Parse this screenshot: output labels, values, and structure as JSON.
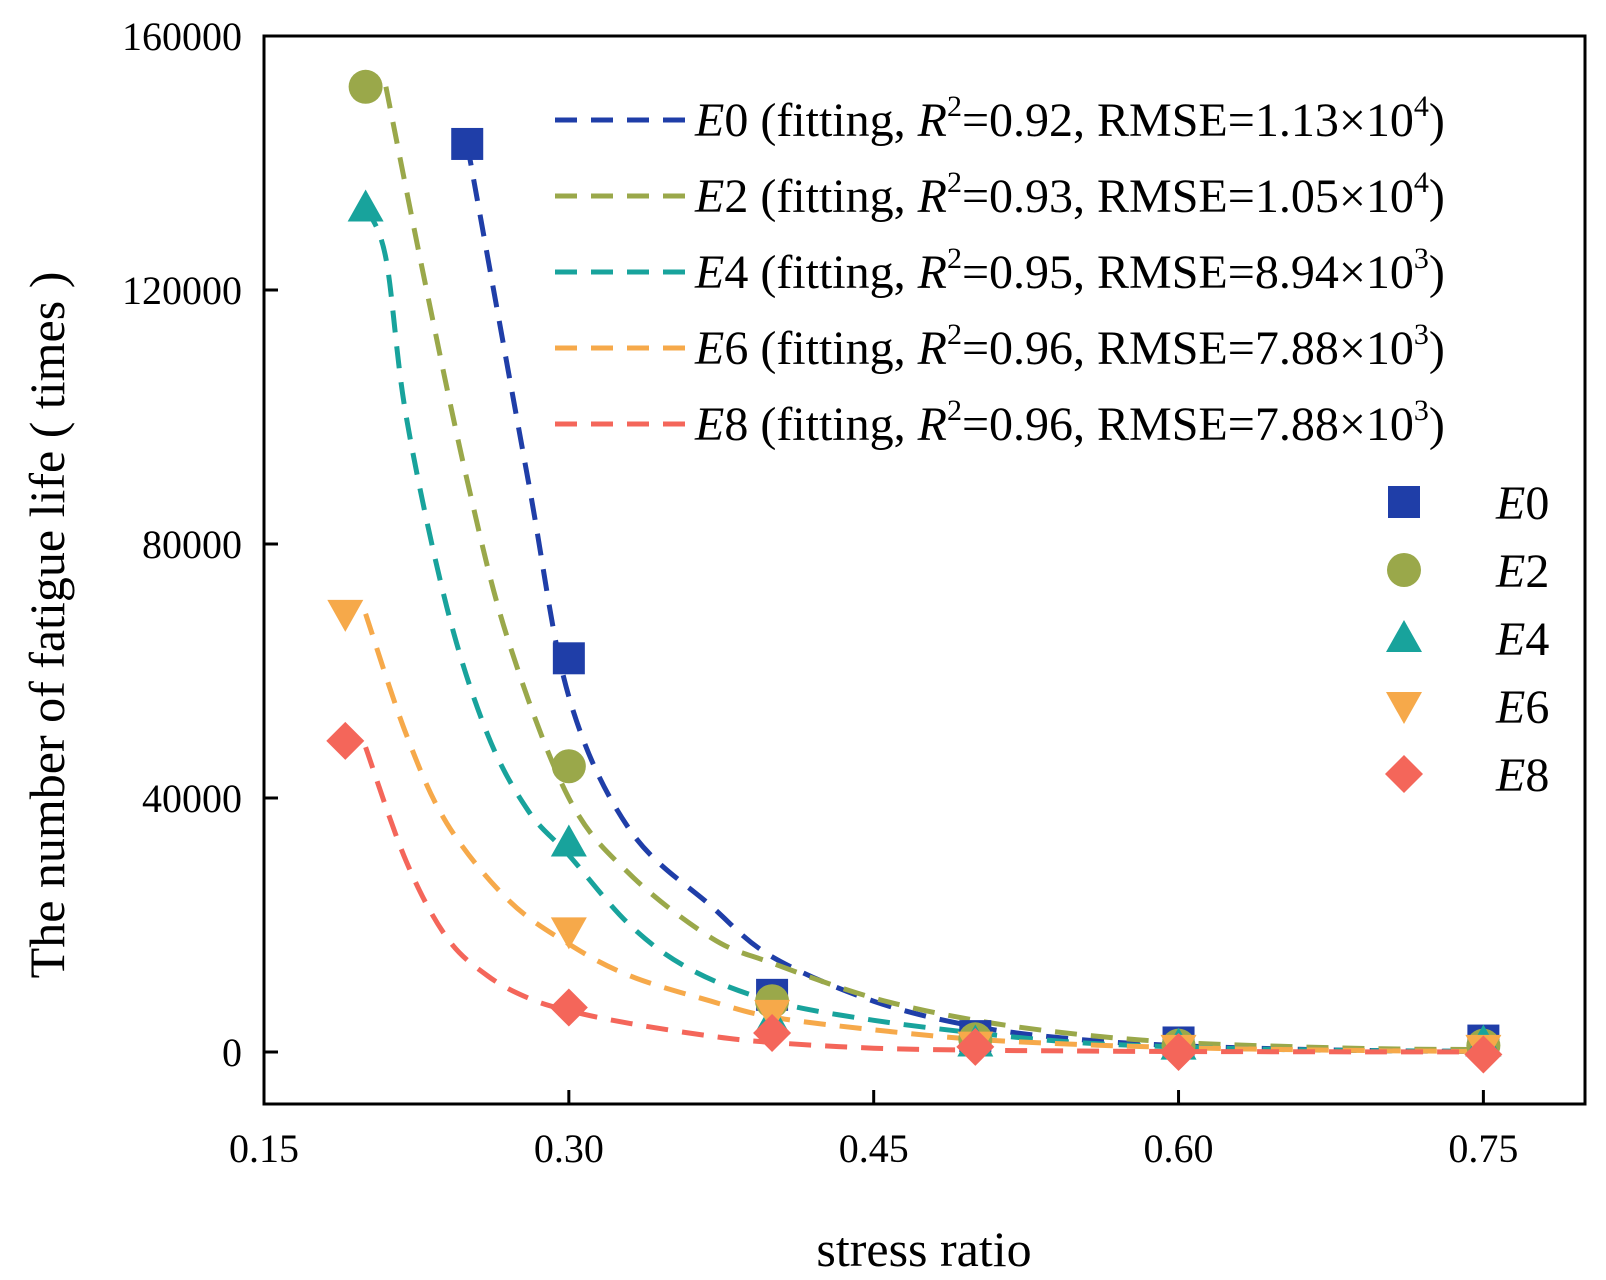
{
  "chart_data": {
    "type": "scatter",
    "xlabel": "stress ratio",
    "ylabel": "The number of fatigue life ( times )",
    "xlim": [
      0.15,
      0.8
    ],
    "ylim": [
      -8000,
      160000
    ],
    "xticks": [
      "0.15",
      "0.30",
      "0.45",
      "0.60",
      "0.75"
    ],
    "yticks": [
      "0",
      "40000",
      "80000",
      "120000",
      "160000"
    ],
    "xtick_values": [
      0.15,
      0.3,
      0.45,
      0.6,
      0.75
    ],
    "ytick_values": [
      0,
      40000,
      80000,
      120000,
      160000
    ],
    "legend_position": "top-right",
    "series": [
      {
        "name": "E0",
        "name_italic": "E",
        "name_num": "0",
        "marker": "square",
        "color": "#1f3ea8",
        "points": [
          [
            0.25,
            143000
          ],
          [
            0.3,
            62000
          ],
          [
            0.4,
            9000
          ],
          [
            0.5,
            2500
          ],
          [
            0.6,
            1500
          ],
          [
            0.75,
            1800
          ]
        ],
        "fit": {
          "x": [
            0.25,
            0.28,
            0.3,
            0.33,
            0.37,
            0.4,
            0.45,
            0.5,
            0.55,
            0.6,
            0.65,
            0.7,
            0.75
          ],
          "y": [
            143000,
            90000,
            56000,
            35000,
            23000,
            15000,
            8000,
            4000,
            2000,
            1000,
            500,
            200,
            100
          ],
          "label": " (fitting, ",
          "r2_label": "R",
          "r2_exp": "2",
          "r2_value": "=0.92, RMSE=1.13×10",
          "rmse_exp": "4",
          "close": ")"
        }
      },
      {
        "name": "E2",
        "name_italic": "E",
        "name_num": "2",
        "marker": "circle",
        "color": "#9aa84a",
        "points": [
          [
            0.2,
            152000
          ],
          [
            0.3,
            45000
          ],
          [
            0.4,
            8000
          ],
          [
            0.5,
            2000
          ],
          [
            0.6,
            1000
          ],
          [
            0.75,
            1000
          ]
        ],
        "fit": {
          "x": [
            0.21,
            0.23,
            0.25,
            0.27,
            0.3,
            0.33,
            0.37,
            0.4,
            0.45,
            0.5,
            0.55,
            0.6,
            0.65,
            0.7,
            0.75
          ],
          "y": [
            152000,
            120000,
            90000,
            65000,
            40000,
            28000,
            18000,
            14000,
            8500,
            5000,
            2800,
            1500,
            900,
            500,
            400
          ],
          "label": " (fitting, ",
          "r2_label": "R",
          "r2_exp": "2",
          "r2_value": "=0.93, RMSE=1.05×10",
          "rmse_exp": "4",
          "close": ")"
        }
      },
      {
        "name": "E4",
        "name_italic": "E",
        "name_num": "4",
        "marker": "triangle-up",
        "color": "#18a39c",
        "points": [
          [
            0.2,
            133000
          ],
          [
            0.3,
            33000
          ],
          [
            0.4,
            5000
          ],
          [
            0.5,
            1500
          ],
          [
            0.6,
            1000
          ],
          [
            0.75,
            1500
          ]
        ],
        "fit": {
          "x": [
            0.2,
            0.21,
            0.22,
            0.24,
            0.26,
            0.28,
            0.3,
            0.33,
            0.36,
            0.4,
            0.45,
            0.5,
            0.55,
            0.6,
            0.65,
            0.7,
            0.75
          ],
          "y": [
            133000,
            125000,
            100000,
            70000,
            50000,
            38000,
            31000,
            20000,
            13000,
            8000,
            5000,
            3000,
            1500,
            800,
            400,
            200,
            100
          ],
          "label": " (fitting, ",
          "r2_label": "R",
          "r2_exp": "2",
          "r2_value": "=0.95, RMSE=8.94×10",
          "rmse_exp": "3",
          "close": ")"
        }
      },
      {
        "name": "E6",
        "name_italic": "E",
        "name_num": "6",
        "marker": "triangle-down",
        "color": "#f6a94a",
        "points": [
          [
            0.19,
            69000
          ],
          [
            0.3,
            19000
          ],
          [
            0.4,
            6000
          ],
          [
            0.5,
            1000
          ],
          [
            0.6,
            500
          ],
          [
            0.75,
            500
          ]
        ],
        "fit": {
          "x": [
            0.2,
            0.22,
            0.24,
            0.27,
            0.3,
            0.33,
            0.37,
            0.4,
            0.45,
            0.5,
            0.55,
            0.6,
            0.65,
            0.7,
            0.75
          ],
          "y": [
            69000,
            50000,
            36000,
            24000,
            17000,
            12000,
            8000,
            5500,
            3500,
            2000,
            1200,
            700,
            400,
            200,
            100
          ],
          "label": " (fitting, ",
          "r2_label": "R",
          "r2_exp": "2",
          "r2_value": "=0.96, RMSE=7.88×10",
          "rmse_exp": "3",
          "close": ")"
        }
      },
      {
        "name": "E8",
        "name_italic": "E",
        "name_num": "8",
        "marker": "diamond",
        "color": "#f4665a",
        "points": [
          [
            0.19,
            49000
          ],
          [
            0.3,
            7000
          ],
          [
            0.4,
            3000
          ],
          [
            0.5,
            800
          ],
          [
            0.6,
            0
          ],
          [
            0.75,
            -400
          ]
        ],
        "fit": {
          "x": [
            0.2,
            0.22,
            0.24,
            0.26,
            0.28,
            0.3,
            0.33,
            0.37,
            0.4,
            0.45,
            0.5,
            0.55,
            0.6,
            0.65,
            0.7,
            0.75
          ],
          "y": [
            48000,
            30000,
            18000,
            12000,
            8500,
            6500,
            4500,
            2500,
            1500,
            600,
            300,
            150,
            80,
            40,
            20,
            10
          ],
          "label": " (fitting, ",
          "r2_label": "R",
          "r2_exp": "2",
          "r2_value": "=0.96, RMSE=7.88×10",
          "rmse_exp": "3",
          "close": ")"
        }
      }
    ]
  }
}
